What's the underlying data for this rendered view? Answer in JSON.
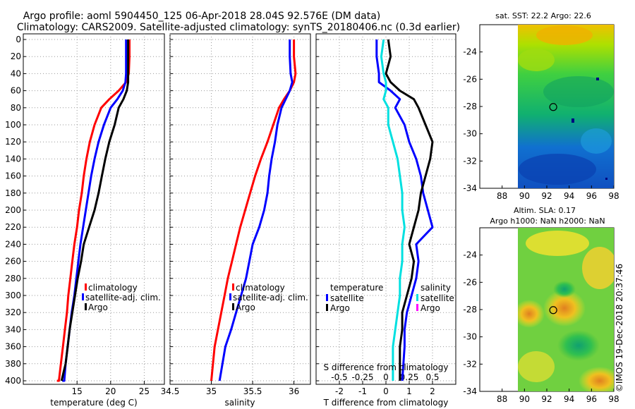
{
  "header": {
    "line1": "Argo profile: aoml 5904450_125 06-Apr-2018 28.04S 92.576E (DM data)",
    "line2": "Climatology: CARS2009. Satellite-adjusted climatology: synTS_20180406.nc (0.3d earlier)"
  },
  "colors": {
    "climatology": "#ff0000",
    "satellite": "#0000ff",
    "argo": "#000000",
    "argo_salinity": "#ff00ff",
    "satellite_salinity": "#00e0e0"
  },
  "chart_data": [
    {
      "type": "line",
      "id": "temperature",
      "xlabel": "temperature (deg C)",
      "ylabel": "depth",
      "xlim": [
        7,
        28
      ],
      "ylim": [
        400,
        0
      ],
      "xticks": [
        "15",
        "20",
        "25"
      ],
      "xtick_values": [
        15,
        20,
        25
      ],
      "yticks": [
        "0",
        "20",
        "40",
        "60",
        "80",
        "100",
        "120",
        "140",
        "160",
        "180",
        "200",
        "220",
        "240",
        "260",
        "280",
        "300",
        "320",
        "340",
        "360",
        "380",
        "400"
      ],
      "grid": true,
      "legend": [
        "climatology",
        "satellite-adj. clim.",
        "Argo"
      ],
      "legend_position": "lower-right",
      "series": [
        {
          "name": "climatology",
          "color": "#ff0000",
          "x": [
            22.8,
            22.8,
            22.7,
            22.3,
            21.2,
            19.8,
            18.6,
            17.6,
            16.9,
            16.4,
            16.0,
            15.7,
            15.3,
            15.0,
            14.6,
            14.3,
            14.0,
            13.7,
            13.5,
            13.2,
            12.9,
            12.6,
            12.3,
            12.0
          ],
          "y": [
            0,
            20,
            40,
            50,
            60,
            70,
            80,
            100,
            120,
            140,
            160,
            180,
            200,
            220,
            240,
            260,
            280,
            300,
            320,
            340,
            360,
            380,
            400,
            400
          ]
        },
        {
          "name": "satellite-adj. clim.",
          "color": "#0000ff",
          "x": [
            22.3,
            22.3,
            22.3,
            22.2,
            21.8,
            21.0,
            20.0,
            19.0,
            18.2,
            17.6,
            17.1,
            16.7,
            16.3,
            15.9,
            15.5,
            15.2,
            14.9,
            14.6,
            14.2,
            13.9,
            13.6,
            13.3,
            13.1,
            12.8
          ],
          "y": [
            0,
            20,
            40,
            50,
            60,
            70,
            80,
            100,
            120,
            140,
            160,
            180,
            200,
            220,
            240,
            260,
            280,
            300,
            320,
            340,
            360,
            380,
            400,
            400
          ]
        },
        {
          "name": "Argo",
          "color": "#000000",
          "x": [
            22.6,
            22.6,
            22.6,
            22.6,
            22.4,
            21.9,
            21.2,
            20.6,
            19.8,
            19.2,
            18.7,
            18.2,
            17.6,
            16.8,
            16.0,
            15.6,
            15.1,
            14.7,
            14.3,
            13.9,
            13.6,
            13.3,
            13.0,
            12.7
          ],
          "y": [
            0,
            20,
            40,
            50,
            60,
            70,
            80,
            100,
            120,
            140,
            160,
            180,
            200,
            220,
            240,
            260,
            280,
            300,
            320,
            340,
            360,
            380,
            390,
            400
          ]
        }
      ]
    },
    {
      "type": "line",
      "id": "salinity",
      "xlabel": "salinity",
      "ylabel": "depth",
      "xlim": [
        34.5,
        36.2
      ],
      "ylim": [
        400,
        0
      ],
      "xticks": [
        "34.5",
        "35",
        "35.5",
        "36"
      ],
      "xtick_values": [
        34.5,
        35,
        35.5,
        36
      ],
      "grid": true,
      "legend": [
        "climatology",
        "satellite-adj. clim.",
        "Argo"
      ],
      "legend_position": "lower-right",
      "series": [
        {
          "name": "climatology",
          "color": "#ff0000",
          "x": [
            36.0,
            36.0,
            36.02,
            36.0,
            35.95,
            35.88,
            35.82,
            35.75,
            35.68,
            35.6,
            35.53,
            35.47,
            35.41,
            35.35,
            35.3,
            35.25,
            35.2,
            35.16,
            35.12,
            35.08,
            35.04,
            35.0
          ],
          "y": [
            0,
            20,
            40,
            50,
            60,
            70,
            80,
            100,
            120,
            140,
            160,
            180,
            200,
            220,
            240,
            260,
            280,
            300,
            320,
            340,
            360,
            400
          ]
        },
        {
          "name": "satellite-adj. clim.",
          "color": "#0000ff",
          "x": [
            35.95,
            35.95,
            35.96,
            35.98,
            35.95,
            35.9,
            35.85,
            35.8,
            35.77,
            35.73,
            35.7,
            35.68,
            35.64,
            35.58,
            35.5,
            35.46,
            35.42,
            35.36,
            35.3,
            35.24,
            35.17,
            35.1
          ],
          "y": [
            0,
            20,
            40,
            50,
            60,
            70,
            80,
            100,
            120,
            140,
            160,
            180,
            200,
            220,
            240,
            260,
            280,
            300,
            320,
            340,
            360,
            400
          ]
        },
        {
          "name": "Argo",
          "color": "#000000",
          "x": [],
          "y": []
        }
      ]
    },
    {
      "type": "line",
      "id": "differences",
      "xlabel": "T difference from climatology",
      "secondary_xlabel": "S difference from climatology",
      "xlim": [
        -3,
        3
      ],
      "ylim": [
        400,
        0
      ],
      "xticks": [
        "-2",
        "-1",
        "0",
        "1",
        "2"
      ],
      "xtick_values": [
        -2,
        -1,
        0,
        1,
        2
      ],
      "secondary_xticks": [
        "-0.5",
        "-0.25",
        "0",
        "0.25",
        "0.5"
      ],
      "secondary_xtick_values": [
        -2,
        -1,
        0,
        1,
        2
      ],
      "grid": true,
      "legend_temperature_title": "temperature",
      "legend_salinity_title": "salinity",
      "legend_temperature": [
        "satellite",
        "Argo"
      ],
      "legend_salinity": [
        "satellite",
        "Argo"
      ],
      "legend_position": "lower",
      "series": [
        {
          "name": "T satellite",
          "color": "#0000ff",
          "x": [
            -0.4,
            -0.4,
            -0.3,
            -0.3,
            0.2,
            0.6,
            0.4,
            0.8,
            1.0,
            1.3,
            1.5,
            1.6,
            1.8,
            2.0,
            1.3,
            1.4,
            1.3,
            1.1,
            0.9,
            0.8,
            0.8,
            0.7
          ],
          "y": [
            0,
            20,
            40,
            50,
            60,
            70,
            80,
            100,
            120,
            140,
            160,
            180,
            200,
            220,
            240,
            260,
            280,
            300,
            320,
            340,
            360,
            400
          ]
        },
        {
          "name": "T Argo",
          "color": "#000000",
          "x": [
            0.1,
            0.2,
            0.0,
            0.2,
            0.6,
            1.2,
            1.4,
            1.7,
            2.0,
            1.9,
            1.7,
            1.5,
            1.4,
            1.2,
            1.0,
            1.2,
            1.1,
            0.9,
            0.7,
            0.7,
            0.6,
            0.6
          ],
          "y": [
            0,
            20,
            40,
            50,
            60,
            70,
            80,
            100,
            120,
            140,
            160,
            180,
            200,
            220,
            240,
            260,
            280,
            300,
            320,
            340,
            360,
            400
          ]
        },
        {
          "name": "S satellite",
          "color": "#00e0e0",
          "x": [
            -0.1,
            -0.2,
            -0.1,
            0.0,
            0.0,
            -0.1,
            0.1,
            0.1,
            0.3,
            0.5,
            0.6,
            0.7,
            0.7,
            0.8,
            0.7,
            0.7,
            0.6,
            0.6,
            0.5,
            0.4,
            0.3,
            0.3
          ],
          "y": [
            0,
            20,
            40,
            50,
            60,
            70,
            80,
            100,
            120,
            140,
            160,
            180,
            200,
            220,
            240,
            260,
            280,
            300,
            320,
            340,
            360,
            400
          ]
        }
      ]
    },
    {
      "type": "heatmap",
      "id": "sst-map",
      "title": "sat. SST: 22.2 Argo: 22.6",
      "xlim": [
        86,
        98
      ],
      "ylim": [
        -34,
        -22
      ],
      "xticks": [
        "88",
        "90",
        "92",
        "94",
        "96",
        "98"
      ],
      "xtick_values": [
        88,
        90,
        92,
        94,
        96,
        98
      ],
      "yticks": [
        "-24",
        "-26",
        "-28",
        "-30",
        "-32",
        "-34"
      ],
      "ytick_values": [
        -24,
        -26,
        -28,
        -30,
        -32,
        -34
      ],
      "data_xrange": [
        90,
        98
      ],
      "argo_position": [
        92.576,
        -28.04
      ]
    },
    {
      "type": "heatmap",
      "id": "sla-map",
      "title": "Altim. SLA: 0.17",
      "subtitle": "Argo h1000: NaN h2000: NaN",
      "xlim": [
        86,
        98
      ],
      "ylim": [
        -34,
        -22
      ],
      "xticks": [
        "88",
        "90",
        "92",
        "94",
        "96",
        "98"
      ],
      "xtick_values": [
        88,
        90,
        92,
        94,
        96,
        98
      ],
      "yticks": [
        "-24",
        "-26",
        "-28",
        "-30",
        "-32",
        "-34"
      ],
      "ytick_values": [
        -24,
        -26,
        -28,
        -30,
        -32,
        -34
      ],
      "data_xrange": [
        90,
        98
      ],
      "argo_position": [
        92.576,
        -28.04
      ]
    }
  ],
  "watermark": "©IMOS 19-Dec-2018 20:37:46"
}
